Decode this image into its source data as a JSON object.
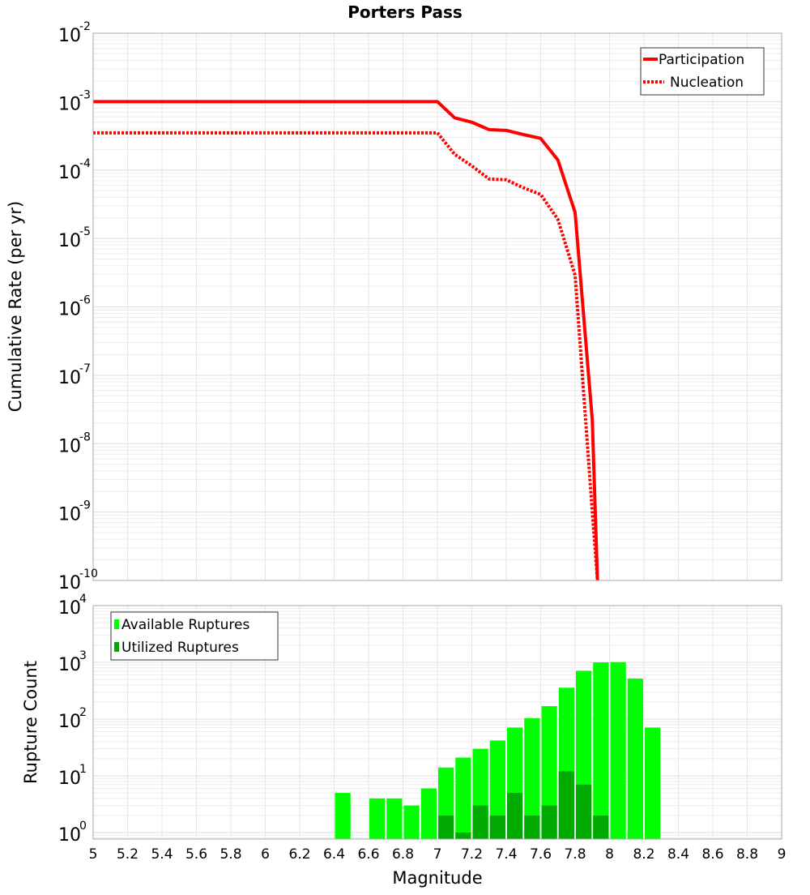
{
  "chart_data": [
    {
      "type": "line",
      "title": "Porters Pass",
      "xlabel": "",
      "ylabel": "Cumulative Rate (per yr)",
      "yscale": "log",
      "xlim": [
        5,
        9
      ],
      "ylim": [
        1e-10,
        0.01
      ],
      "ytick_exponents": [
        "-2",
        "-3",
        "-4",
        "-5",
        "-6",
        "-7",
        "-8",
        "-9",
        "-10"
      ],
      "grid": true,
      "legend_position": "top-right",
      "series": [
        {
          "name": "Participation",
          "style": "solid",
          "color": "#ff0000",
          "x": [
            5.0,
            7.0,
            7.1,
            7.2,
            7.3,
            7.4,
            7.5,
            7.6,
            7.7,
            7.8,
            7.9,
            7.93
          ],
          "y": [
            0.001,
            0.001,
            0.00058,
            0.0005,
            0.00039,
            0.00038,
            0.00033,
            0.00029,
            0.00014,
            2.4e-05,
            2.2e-08,
            1e-10
          ]
        },
        {
          "name": "Nucleation",
          "style": "dotted",
          "color": "#ff0000",
          "x": [
            5.0,
            7.0,
            7.1,
            7.2,
            7.3,
            7.4,
            7.5,
            7.6,
            7.7,
            7.8,
            7.9,
            7.93
          ],
          "y": [
            0.00035,
            0.00035,
            0.00017,
            0.000115,
            7.4e-05,
            7.2e-05,
            5.5e-05,
            4.4e-05,
            1.9e-05,
            2.9e-06,
            1e-09,
            1e-10
          ]
        }
      ]
    },
    {
      "type": "bar",
      "title": "",
      "xlabel": "Magnitude",
      "ylabel": "Rupture Count",
      "yscale": "log",
      "xlim": [
        5,
        9
      ],
      "ylim": [
        0.72,
        10000.0
      ],
      "xticks": [
        "5",
        "5.2",
        "5.4",
        "5.6",
        "5.8",
        "6",
        "6.2",
        "6.4",
        "6.6",
        "6.8",
        "7",
        "7.2",
        "7.4",
        "7.6",
        "7.8",
        "8",
        "8.2",
        "8.4",
        "8.6",
        "8.8",
        "9"
      ],
      "ytick_exponents": [
        "4",
        "3",
        "2",
        "1",
        "0"
      ],
      "grid": true,
      "legend_position": "top-left",
      "bin_centers": [
        6.45,
        6.65,
        6.75,
        6.85,
        6.95,
        7.05,
        7.15,
        7.25,
        7.35,
        7.45,
        7.55,
        7.65,
        7.75,
        7.85,
        7.95,
        8.05,
        8.15,
        8.25
      ],
      "series": [
        {
          "name": "Available Ruptures",
          "color": "#00ff00",
          "values": [
            5,
            4,
            4,
            3,
            6,
            14,
            21,
            30,
            42,
            71,
            104,
            169,
            357,
            710,
            1000,
            1010,
            517,
            71
          ]
        },
        {
          "name": "Utilized Ruptures",
          "color": "#00aa00",
          "values": [
            0,
            0,
            0,
            0,
            0,
            2,
            1,
            3,
            2,
            5,
            2,
            3,
            12,
            7,
            2,
            0,
            0,
            0
          ]
        }
      ]
    }
  ]
}
